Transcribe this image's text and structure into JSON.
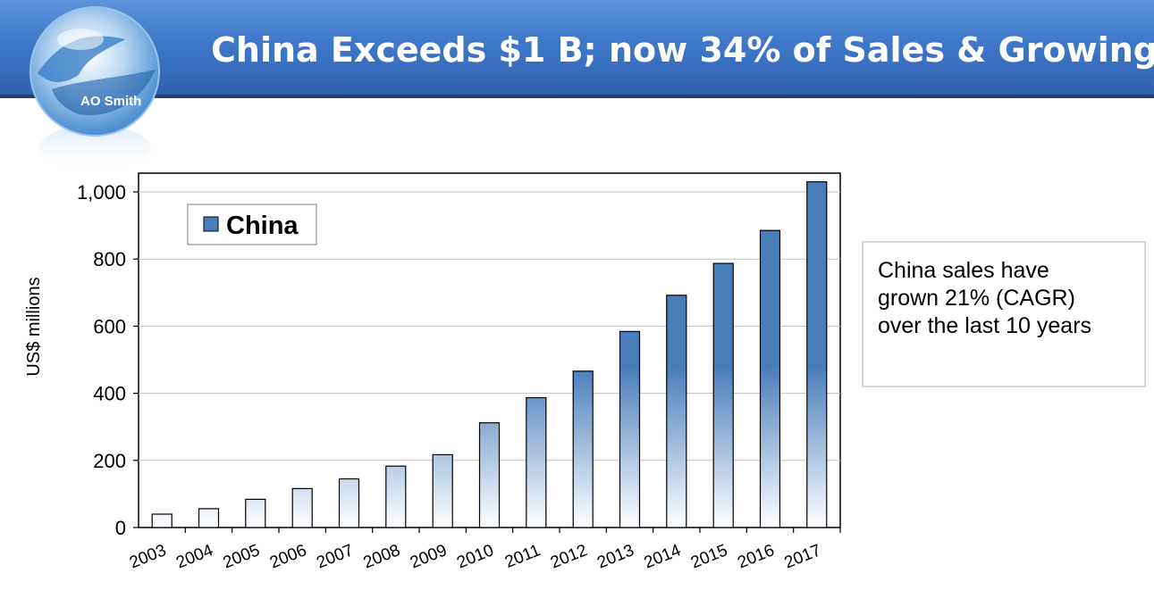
{
  "slide": {
    "title": "China Exceeds $1 B; now 34% of Sales & Growing",
    "logo_text": "AO Smith",
    "callout_lines": [
      "China sales have",
      "grown 21% (CAGR)",
      "over the last 10 years"
    ]
  },
  "colors": {
    "header": "#3f78c9",
    "bar": "#4a7ebb",
    "grid": "#bfbfbf"
  },
  "chart_data": {
    "type": "bar",
    "ylabel": "US$ millions",
    "ylim": [
      0,
      1000
    ],
    "yticks": [
      0,
      200,
      400,
      600,
      800,
      1000
    ],
    "ytick_labels": [
      "0",
      "200",
      "400",
      "600",
      "800",
      "1,000"
    ],
    "categories": [
      "2003",
      "2004",
      "2005",
      "2006",
      "2007",
      "2008",
      "2009",
      "2010",
      "2011",
      "2012",
      "2013",
      "2014",
      "2015",
      "2016",
      "2017"
    ],
    "series": [
      {
        "name": "China",
        "values": [
          40,
          56,
          84,
          116,
          145,
          183,
          217,
          312,
          387,
          466,
          584,
          692,
          787,
          885,
          1030
        ]
      }
    ],
    "legend": "top-left",
    "grid": true
  }
}
